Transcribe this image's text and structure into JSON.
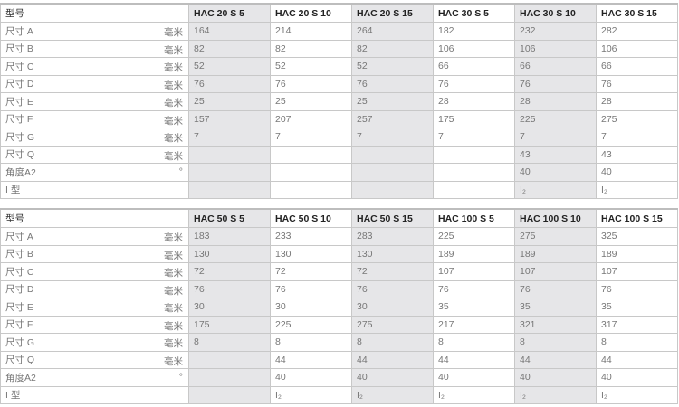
{
  "tables": [
    {
      "header_label": "型号",
      "models": [
        "HAC 20 S 5",
        "HAC 20 S 10",
        "HAC 20 S 15",
        "HAC 30 S 5",
        "HAC 30 S 10",
        "HAC 30 S 15"
      ],
      "rows": [
        {
          "label": "尺寸 A",
          "unit": "毫米",
          "values": [
            "164",
            "214",
            "264",
            "182",
            "232",
            "282"
          ]
        },
        {
          "label": "尺寸 B",
          "unit": "毫米",
          "values": [
            "82",
            "82",
            "82",
            "106",
            "106",
            "106"
          ]
        },
        {
          "label": "尺寸 C",
          "unit": "毫米",
          "values": [
            "52",
            "52",
            "52",
            "66",
            "66",
            "66"
          ]
        },
        {
          "label": "尺寸 D",
          "unit": "毫米",
          "values": [
            "76",
            "76",
            "76",
            "76",
            "76",
            "76"
          ]
        },
        {
          "label": "尺寸 E",
          "unit": "毫米",
          "values": [
            "25",
            "25",
            "25",
            "28",
            "28",
            "28"
          ]
        },
        {
          "label": "尺寸 F",
          "unit": "毫米",
          "values": [
            "157",
            "207",
            "257",
            "175",
            "225",
            "275"
          ]
        },
        {
          "label": "尺寸 G",
          "unit": "毫米",
          "values": [
            "7",
            "7",
            "7",
            "7",
            "7",
            "7"
          ]
        },
        {
          "label": "尺寸 Q",
          "unit": "毫米",
          "values": [
            "",
            "",
            "",
            "",
            "43",
            "43"
          ]
        },
        {
          "label": "角度A2",
          "unit": "°",
          "values": [
            "",
            "",
            "",
            "",
            "40",
            "40"
          ]
        },
        {
          "label": "I 型",
          "unit": "",
          "values": [
            "",
            "",
            "",
            "",
            "I₂",
            "I₂"
          ]
        }
      ]
    },
    {
      "header_label": "型号",
      "models": [
        "HAC 50 S 5",
        "HAC 50 S 10",
        "HAC 50 S 15",
        "HAC 100 S 5",
        "HAC 100 S 10",
        "HAC 100 S 15"
      ],
      "rows": [
        {
          "label": "尺寸 A",
          "unit": "毫米",
          "values": [
            "183",
            "233",
            "283",
            "225",
            "275",
            "325"
          ]
        },
        {
          "label": "尺寸 B",
          "unit": "毫米",
          "values": [
            "130",
            "130",
            "130",
            "189",
            "189",
            "189"
          ]
        },
        {
          "label": "尺寸 C",
          "unit": "毫米",
          "values": [
            "72",
            "72",
            "72",
            "107",
            "107",
            "107"
          ]
        },
        {
          "label": "尺寸 D",
          "unit": "毫米",
          "values": [
            "76",
            "76",
            "76",
            "76",
            "76",
            "76"
          ]
        },
        {
          "label": "尺寸 E",
          "unit": "毫米",
          "values": [
            "30",
            "30",
            "30",
            "35",
            "35",
            "35"
          ]
        },
        {
          "label": "尺寸 F",
          "unit": "毫米",
          "values": [
            "175",
            "225",
            "275",
            "217",
            "321",
            "317"
          ]
        },
        {
          "label": "尺寸 G",
          "unit": "毫米",
          "values": [
            "8",
            "8",
            "8",
            "8",
            "8",
            "8"
          ]
        },
        {
          "label": "尺寸 Q",
          "unit": "毫米",
          "values": [
            "",
            "44",
            "44",
            "44",
            "44",
            "44"
          ]
        },
        {
          "label": "角度A2",
          "unit": "°",
          "values": [
            "",
            "40",
            "40",
            "40",
            "40",
            "40"
          ]
        },
        {
          "label": "I 型",
          "unit": "",
          "values": [
            "",
            "I₂",
            "I₂",
            "I₂",
            "I₂",
            "I₂"
          ]
        }
      ]
    }
  ],
  "colors": {
    "shaded_column": "#e6e6e8",
    "border": "#c8c8c8"
  }
}
